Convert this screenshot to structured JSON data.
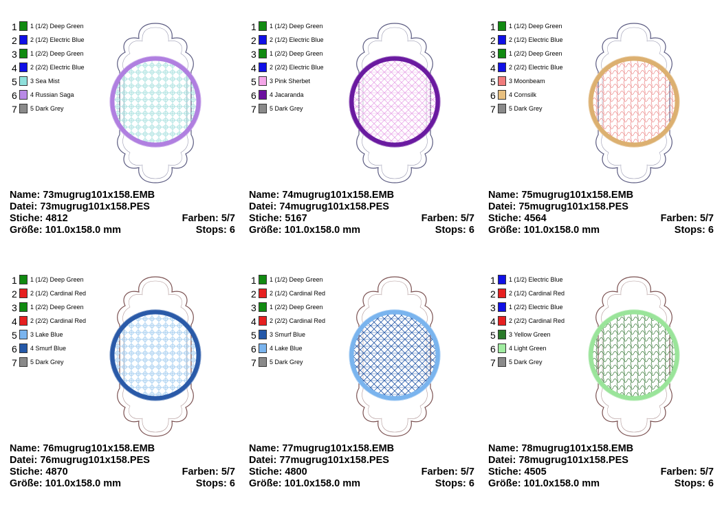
{
  "designs": [
    {
      "legend": [
        {
          "num": "1",
          "label": "1 (1/2) Deep Green",
          "color": "#118a11"
        },
        {
          "num": "2",
          "label": "2 (1/2) Electric Blue",
          "color": "#1010e6"
        },
        {
          "num": "3",
          "label": "1 (2/2) Deep Green",
          "color": "#118a11"
        },
        {
          "num": "4",
          "label": "2 (2/2) Electric Blue",
          "color": "#1010e6"
        },
        {
          "num": "5",
          "label": "3 Sea Mist",
          "color": "#8fe0dc"
        },
        {
          "num": "6",
          "label": "4 Russian Saga",
          "color": "#b98ae6"
        },
        {
          "num": "7",
          "label": "5 Dark Grey",
          "color": "#8a8a8a"
        }
      ],
      "ring_color": "#b07fe0",
      "fill_color": "#8fd8d6",
      "outline_color": "#5a5a80",
      "name_label": "Name:",
      "name": "73mugrug101x158.EMB",
      "file_label": "Datei:",
      "file": "73mugrug101x158.PES",
      "stitches_label": "Stiche:",
      "stitches": "4812",
      "colors_label": "Farben:",
      "colors": "5/7",
      "size_label": "Größe:",
      "size": "101.0x158.0 mm",
      "stops_label": "Stops:",
      "stops": "6"
    },
    {
      "legend": [
        {
          "num": "1",
          "label": "1 (1/2) Deep Green",
          "color": "#118a11"
        },
        {
          "num": "2",
          "label": "2 (1/2) Electric Blue",
          "color": "#1010e6"
        },
        {
          "num": "3",
          "label": "1 (2/2) Deep Green",
          "color": "#118a11"
        },
        {
          "num": "4",
          "label": "2 (2/2) Electric Blue",
          "color": "#1010e6"
        },
        {
          "num": "5",
          "label": "3 Pink Sherbet",
          "color": "#f4a6e8"
        },
        {
          "num": "6",
          "label": "4 Jacaranda",
          "color": "#6b109e"
        },
        {
          "num": "7",
          "label": "5 Dark Grey",
          "color": "#8a8a8a"
        }
      ],
      "ring_color": "#6a1aa0",
      "fill_color": "#e8a8e8",
      "outline_color": "#5a5a80",
      "name_label": "Name:",
      "name": "74mugrug101x158.EMB",
      "file_label": "Datei:",
      "file": "74mugrug101x158.PES",
      "stitches_label": "Stiche:",
      "stitches": "5167",
      "colors_label": "Farben:",
      "colors": "5/7",
      "size_label": "Größe:",
      "size": "101.0x158.0 mm",
      "stops_label": "Stops:",
      "stops": "6"
    },
    {
      "legend": [
        {
          "num": "1",
          "label": "1 (1/2) Deep Green",
          "color": "#118a11"
        },
        {
          "num": "2",
          "label": "2 (1/2) Electric Blue",
          "color": "#1010e6"
        },
        {
          "num": "3",
          "label": "1 (2/2) Deep Green",
          "color": "#118a11"
        },
        {
          "num": "4",
          "label": "2 (2/2) Electric Blue",
          "color": "#1010e6"
        },
        {
          "num": "5",
          "label": "3 Moonbeam",
          "color": "#f07c7c"
        },
        {
          "num": "6",
          "label": "4 Cornsilk",
          "color": "#e8c080"
        },
        {
          "num": "7",
          "label": "5 Dark Grey",
          "color": "#8a8a8a"
        }
      ],
      "ring_color": "#dcb070",
      "fill_color": "#ec8a8a",
      "outline_color": "#5a5a80",
      "name_label": "Name:",
      "name": "75mugrug101x158.EMB",
      "file_label": "Datei:",
      "file": "75mugrug101x158.PES",
      "stitches_label": "Stiche:",
      "stitches": "4564",
      "colors_label": "Farben:",
      "colors": "5/7",
      "size_label": "Größe:",
      "size": "101.0x158.0 mm",
      "stops_label": "Stops:",
      "stops": "6"
    },
    {
      "legend": [
        {
          "num": "1",
          "label": "1 (1/2) Deep Green",
          "color": "#118a11"
        },
        {
          "num": "2",
          "label": "2 (1/2) Cardinal Red",
          "color": "#e62020"
        },
        {
          "num": "3",
          "label": "1 (2/2) Deep Green",
          "color": "#118a11"
        },
        {
          "num": "4",
          "label": "2 (2/2) Cardinal Red",
          "color": "#e62020"
        },
        {
          "num": "5",
          "label": "3 Lake Blue",
          "color": "#7ab4ee"
        },
        {
          "num": "6",
          "label": "4 Smurf Blue",
          "color": "#2458a8"
        },
        {
          "num": "7",
          "label": "5 Dark Grey",
          "color": "#8a8a8a"
        }
      ],
      "ring_color": "#2a5aa8",
      "fill_color": "#8ac0ec",
      "outline_color": "#7a5050",
      "name_label": "Name:",
      "name": "76mugrug101x158.EMB",
      "file_label": "Datei:",
      "file": "76mugrug101x158.PES",
      "stitches_label": "Stiche:",
      "stitches": "4870",
      "colors_label": "Farben:",
      "colors": "5/7",
      "size_label": "Größe:",
      "size": "101.0x158.0 mm",
      "stops_label": "Stops:",
      "stops": "6"
    },
    {
      "legend": [
        {
          "num": "1",
          "label": "1 (1/2) Deep Green",
          "color": "#118a11"
        },
        {
          "num": "2",
          "label": "2 (1/2) Cardinal Red",
          "color": "#e62020"
        },
        {
          "num": "3",
          "label": "1 (2/2) Deep Green",
          "color": "#118a11"
        },
        {
          "num": "4",
          "label": "2 (2/2) Cardinal Red",
          "color": "#e62020"
        },
        {
          "num": "5",
          "label": "3 Smurf Blue",
          "color": "#2458a8"
        },
        {
          "num": "6",
          "label": "4 Lake Blue",
          "color": "#7ab4ee"
        },
        {
          "num": "7",
          "label": "5 Dark Grey",
          "color": "#8a8a8a"
        }
      ],
      "ring_color": "#7ab4ee",
      "fill_color": "#2458a8",
      "outline_color": "#7a5050",
      "name_label": "Name:",
      "name": "77mugrug101x158.EMB",
      "file_label": "Datei:",
      "file": "77mugrug101x158.PES",
      "stitches_label": "Stiche:",
      "stitches": "4800",
      "colors_label": "Farben:",
      "colors": "5/7",
      "size_label": "Größe:",
      "size": "101.0x158.0 mm",
      "stops_label": "Stops:",
      "stops": "6"
    },
    {
      "legend": [
        {
          "num": "1",
          "label": "1 (1/2) Electric Blue",
          "color": "#1010e6"
        },
        {
          "num": "2",
          "label": "2 (1/2) Cardinal Red",
          "color": "#e62020"
        },
        {
          "num": "3",
          "label": "1 (2/2) Electric Blue",
          "color": "#1010e6"
        },
        {
          "num": "4",
          "label": "2 (2/2) Cardinal Red",
          "color": "#e62020"
        },
        {
          "num": "5",
          "label": "3 Yellow Green",
          "color": "#2a7a2a"
        },
        {
          "num": "6",
          "label": "4 Light Green",
          "color": "#a0eca0"
        },
        {
          "num": "7",
          "label": "5 Dark Grey",
          "color": "#8a8a8a"
        }
      ],
      "ring_color": "#9ae49a",
      "fill_color": "#3a7a3a",
      "outline_color": "#7a5050",
      "name_label": "Name:",
      "name": "78mugrug101x158.EMB",
      "file_label": "Datei:",
      "file": "78mugrug101x158.PES",
      "stitches_label": "Stiche:",
      "stitches": "4505",
      "colors_label": "Farben:",
      "colors": "5/7",
      "size_label": "Größe:",
      "size": "101.0x158.0 mm",
      "stops_label": "Stops:",
      "stops": "6"
    }
  ]
}
